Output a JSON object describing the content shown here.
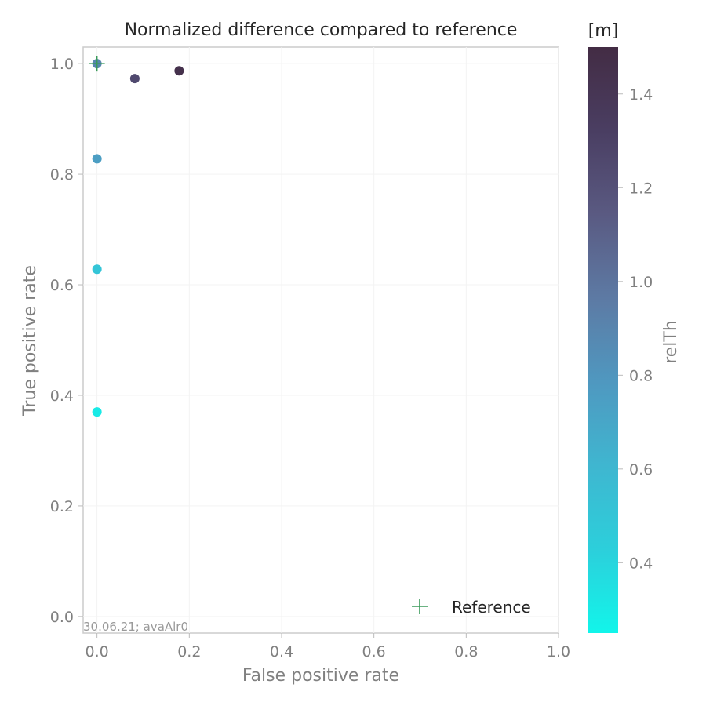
{
  "chart_data": {
    "type": "scatter",
    "title": "Normalized difference compared to reference",
    "xlabel": "False positive rate",
    "ylabel": "True positive rate",
    "xlim": [
      -0.03,
      1.0
    ],
    "ylim": [
      -0.03,
      1.03
    ],
    "xticks": [
      "0.0",
      "0.2",
      "0.4",
      "0.6",
      "0.8",
      "1.0"
    ],
    "yticks": [
      "0.0",
      "0.2",
      "0.4",
      "0.6",
      "0.8",
      "1.0"
    ],
    "grid": true,
    "points": [
      {
        "x": 0.0,
        "y": 0.37,
        "relTh": 0.3
      },
      {
        "x": 0.0,
        "y": 0.628,
        "relTh": 0.5
      },
      {
        "x": 0.0,
        "y": 0.828,
        "relTh": 0.75
      },
      {
        "x": 0.0,
        "y": 1.0,
        "relTh": 0.9
      },
      {
        "x": 0.082,
        "y": 0.973,
        "relTh": 1.25
      },
      {
        "x": 0.178,
        "y": 0.987,
        "relTh": 1.45
      }
    ],
    "reference": {
      "x": 0.0,
      "y": 1.0,
      "color": "#3a9a5a"
    },
    "legend": {
      "position": "lower-right",
      "entries": [
        "Reference"
      ]
    },
    "colorbar": {
      "label": "relTh",
      "unit": "[m]",
      "range": [
        0.25,
        1.5
      ],
      "ticks": [
        "0.4",
        "0.6",
        "0.8",
        "1.0",
        "1.2",
        "1.4"
      ],
      "colors": [
        "#12f5ea",
        "#2ccfdb",
        "#3fb6d0",
        "#4f98c0",
        "#5d7aa4",
        "#5a5a82",
        "#4a3e62",
        "#432c44"
      ]
    },
    "annotation": "30.06.21; avaAlr0"
  }
}
